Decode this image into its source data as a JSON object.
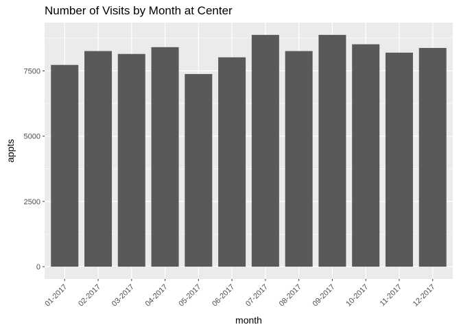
{
  "chart_data": {
    "type": "bar",
    "title": "Number of Visits by Month at Center",
    "xlabel": "month",
    "ylabel": "appts",
    "categories": [
      "01-2017",
      "02-2017",
      "03-2017",
      "04-2017",
      "05-2017",
      "06-2017",
      "07-2017",
      "08-2017",
      "09-2017",
      "10-2017",
      "11-2017",
      "12-2017"
    ],
    "values": [
      7730,
      8260,
      8150,
      8410,
      7380,
      8020,
      8880,
      8260,
      8880,
      8520,
      8200,
      8380
    ],
    "ylim": [
      -470,
      9350
    ],
    "yticks": [
      0,
      2500,
      5000,
      7500
    ],
    "ytick_labels": [
      "0",
      "2500",
      "5000",
      "7500"
    ],
    "grid": true,
    "legend": "none",
    "colors": {
      "bar": "#595959",
      "panel": "#ebebeb",
      "grid": "#ffffff"
    }
  }
}
